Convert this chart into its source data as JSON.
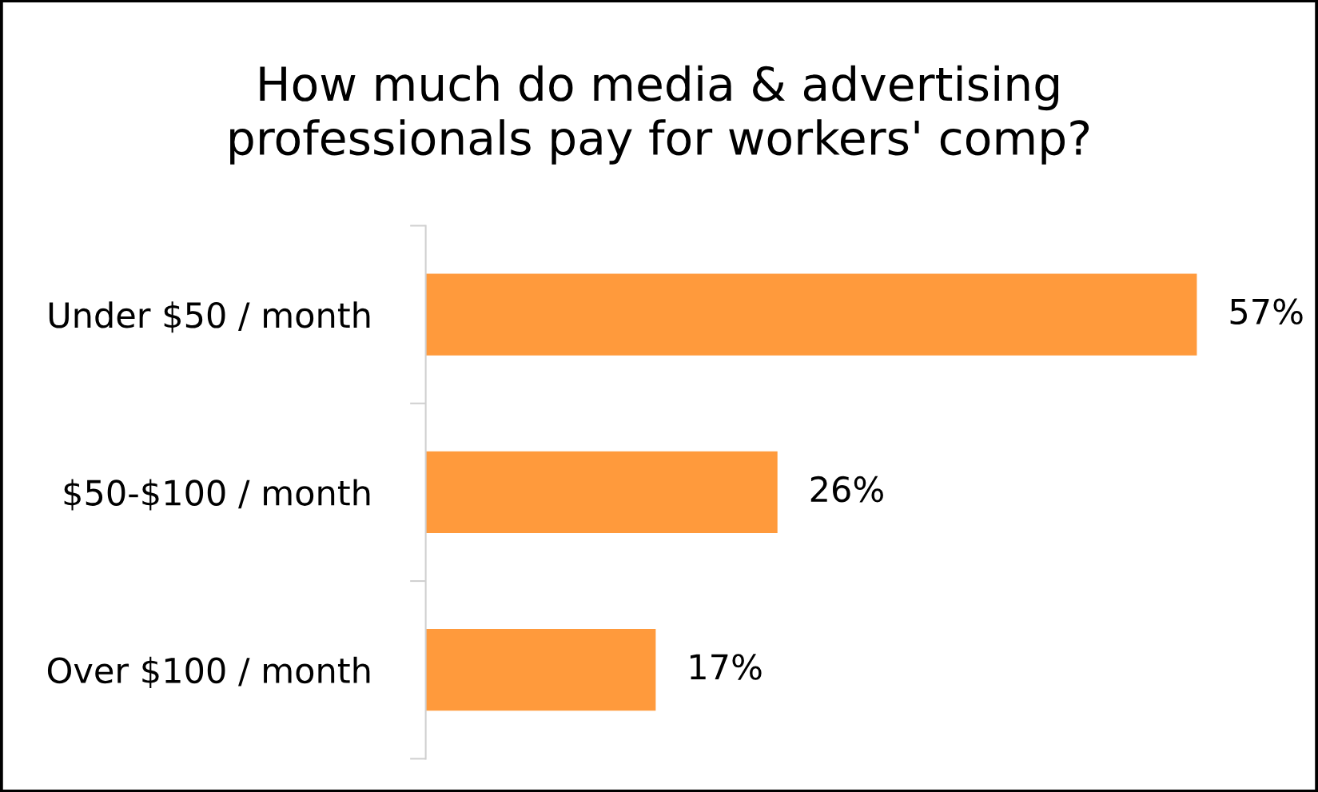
{
  "chart_data": {
    "type": "bar",
    "orientation": "horizontal",
    "title": "How much do media & advertising\nprofessionals pay for workers' comp?",
    "categories": [
      "Under $50 / month",
      "$50-$100 / month",
      "Over $100 / month"
    ],
    "series": [
      {
        "color": "#ff9a3c",
        "values": [
          57,
          26,
          17
        ],
        "value_labels": [
          "57%",
          "26%",
          "17%"
        ]
      }
    ],
    "grid": false,
    "legend": false
  }
}
